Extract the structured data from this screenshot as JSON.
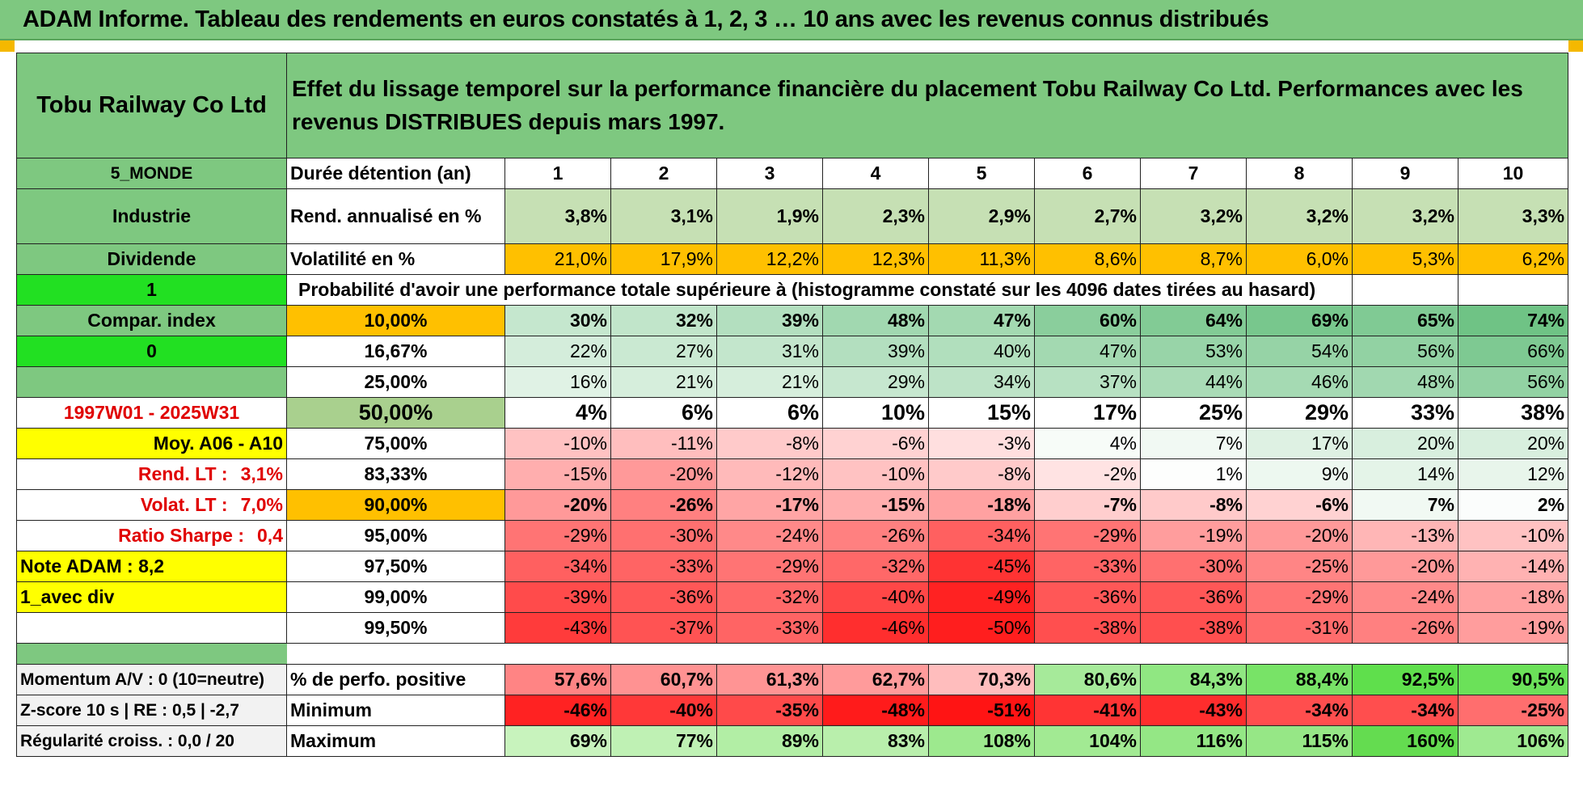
{
  "title": "ADAM Informe. Tableau des rendements en euros constatés à 1, 2, 3 … 10 ans avec les revenus connus distribués",
  "company": "Tobu Railway Co Ltd",
  "description": "Effet du lissage temporel sur la performance financière du placement Tobu Railway Co Ltd. Performances avec les revenus DISTRIBUES depuis mars 1997.",
  "side": {
    "zone": "5_MONDE",
    "sector": "Industrie",
    "type": "Dividende",
    "flag1": "1",
    "compar": "Compar. index",
    "flag2": "0",
    "period": "1997W01 - 2025W31",
    "moy": "Moy. A06 - A10",
    "rend_lt_label": "Rend. LT :",
    "rend_lt_value": "3,1%",
    "volat_lt_label": "Volat. LT :",
    "volat_lt_value": "7,0%",
    "sharpe_label": "Ratio Sharpe :",
    "sharpe_value": "0,4",
    "note": "Note ADAM : 8,2",
    "avec_div": "1_avec div"
  },
  "duration_label": "Durée détention (an)",
  "years": [
    "1",
    "2",
    "3",
    "4",
    "5",
    "6",
    "7",
    "8",
    "9",
    "10"
  ],
  "rend_label": "Rend. annualisé en %",
  "rend": [
    "3,8%",
    "3,1%",
    "1,9%",
    "2,3%",
    "2,9%",
    "2,7%",
    "3,2%",
    "3,2%",
    "3,2%",
    "3,3%"
  ],
  "vol_label": "Volatilité en %",
  "vol": [
    "21,0%",
    "17,9%",
    "12,2%",
    "12,3%",
    "11,3%",
    "8,6%",
    "8,7%",
    "6,0%",
    "5,3%",
    "6,2%"
  ],
  "prob_label": "Probabilité d'avoir une performance totale supérieure à (histogramme constaté sur les 4096 dates tirées au hasard)",
  "prob_rows": [
    {
      "pct": "10,00%",
      "values": [
        "30%",
        "32%",
        "39%",
        "48%",
        "47%",
        "60%",
        "64%",
        "69%",
        "65%",
        "74%"
      ]
    },
    {
      "pct": "16,67%",
      "values": [
        "22%",
        "27%",
        "31%",
        "39%",
        "40%",
        "47%",
        "53%",
        "54%",
        "56%",
        "66%"
      ]
    },
    {
      "pct": "25,00%",
      "values": [
        "16%",
        "21%",
        "21%",
        "29%",
        "34%",
        "37%",
        "44%",
        "46%",
        "48%",
        "56%"
      ]
    },
    {
      "pct": "50,00%",
      "values": [
        "4%",
        "6%",
        "6%",
        "10%",
        "15%",
        "17%",
        "25%",
        "29%",
        "33%",
        "38%"
      ]
    },
    {
      "pct": "75,00%",
      "values": [
        "-10%",
        "-11%",
        "-8%",
        "-6%",
        "-3%",
        "4%",
        "7%",
        "17%",
        "20%",
        "20%"
      ]
    },
    {
      "pct": "83,33%",
      "values": [
        "-15%",
        "-20%",
        "-12%",
        "-10%",
        "-8%",
        "-2%",
        "1%",
        "9%",
        "14%",
        "12%"
      ]
    },
    {
      "pct": "90,00%",
      "values": [
        "-20%",
        "-26%",
        "-17%",
        "-15%",
        "-18%",
        "-7%",
        "-8%",
        "-6%",
        "7%",
        "2%"
      ]
    },
    {
      "pct": "95,00%",
      "values": [
        "-29%",
        "-30%",
        "-24%",
        "-26%",
        "-34%",
        "-29%",
        "-19%",
        "-20%",
        "-13%",
        "-10%"
      ]
    },
    {
      "pct": "97,50%",
      "values": [
        "-34%",
        "-33%",
        "-29%",
        "-32%",
        "-45%",
        "-33%",
        "-30%",
        "-25%",
        "-20%",
        "-14%"
      ]
    },
    {
      "pct": "99,00%",
      "values": [
        "-39%",
        "-36%",
        "-32%",
        "-40%",
        "-49%",
        "-36%",
        "-36%",
        "-29%",
        "-24%",
        "-18%"
      ]
    },
    {
      "pct": "99,50%",
      "values": [
        "-43%",
        "-37%",
        "-33%",
        "-46%",
        "-50%",
        "-38%",
        "-38%",
        "-31%",
        "-26%",
        "-19%"
      ]
    }
  ],
  "momentum": "Momentum A/V : 0 (10=neutre)",
  "zscore": "Z-score 10 s | RE : 0,5 | -2,7",
  "regularite": "Régularité croiss. : 0,0 / 20",
  "pos_label": "% de perfo. positive",
  "pos": [
    "57,6%",
    "60,7%",
    "61,3%",
    "62,7%",
    "70,3%",
    "80,6%",
    "84,3%",
    "88,4%",
    "92,5%",
    "90,5%"
  ],
  "min_label": "Minimum",
  "min": [
    "-46%",
    "-40%",
    "-35%",
    "-48%",
    "-51%",
    "-41%",
    "-43%",
    "-34%",
    "-34%",
    "-25%"
  ],
  "max_label": "Maximum",
  "max": [
    "69%",
    "77%",
    "89%",
    "83%",
    "108%",
    "104%",
    "116%",
    "115%",
    "160%",
    "106%"
  ]
}
